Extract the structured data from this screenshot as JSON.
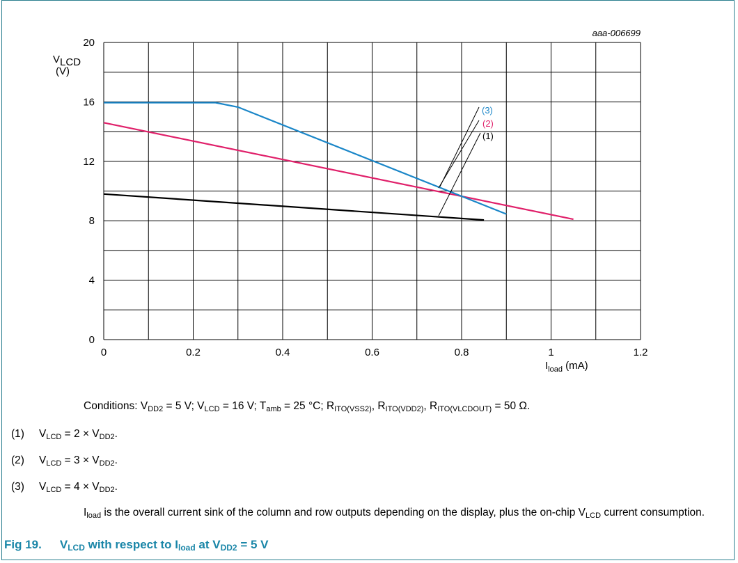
{
  "chart_data": {
    "type": "line",
    "figure_id": "aaa-006699",
    "ylabel_main": "V",
    "ylabel_sub": "LCD",
    "ylabel_unit": "(V)",
    "xlabel_main": "I",
    "xlabel_sub": "load",
    "xlabel_unit": " (mA)",
    "xlim": [
      0,
      1.2
    ],
    "ylim": [
      0,
      20
    ],
    "x_ticks": [
      "0",
      "0.2",
      "0.4",
      "0.6",
      "0.8",
      "1",
      "1.2"
    ],
    "y_ticks": [
      "0",
      "4",
      "8",
      "12",
      "16",
      "20"
    ],
    "grid": true,
    "series": [
      {
        "name": "(1)",
        "color": "#000000",
        "x": [
          0,
          0.85
        ],
        "y": [
          9.8,
          8.05
        ]
      },
      {
        "name": "(2)",
        "color": "#e0206a",
        "x": [
          0,
          1.05
        ],
        "y": [
          14.6,
          8.1
        ]
      },
      {
        "name": "(3)",
        "color": "#1a86c8",
        "x": [
          0,
          0.25,
          0.3,
          0.9
        ],
        "y": [
          15.95,
          15.95,
          15.65,
          8.45
        ]
      }
    ]
  },
  "notes": {
    "conditions": {
      "text1": "Conditions: V",
      "sub1": "DD2",
      "text2": " = 5 V; V",
      "sub2": "LCD",
      "text3": " = 16 V; T",
      "sub3": "amb",
      "text4": " = 25 °C; R",
      "sub4": "ITO(VSS2)",
      "text5": ", R",
      "sub5": "ITO(VDD2)",
      "text6": ", R",
      "sub6": "ITO(VLCDOUT)",
      "text7": " = 50 Ω."
    },
    "items": [
      {
        "num": "(1)",
        "v": "V",
        "vsub": "LCD",
        "mid": " = 2 × V",
        "dsub": "DD2",
        "end": "."
      },
      {
        "num": "(2)",
        "v": "V",
        "vsub": "LCD",
        "mid": " = 3 × V",
        "dsub": "DD2",
        "end": "."
      },
      {
        "num": "(3)",
        "v": "V",
        "vsub": "LCD",
        "mid": " = 4 × V",
        "dsub": "DD2",
        "end": "."
      }
    ],
    "description": {
      "t1": "I",
      "s1": "load",
      "t2": " is the overall current sink of the column and row outputs depending on the display, plus the on-chip V",
      "s2": "LCD",
      "t3": " current consumption."
    }
  },
  "caption": {
    "number": "Fig 19.",
    "t1": "V",
    "s1": "LCD",
    "t2": " with respect to I",
    "s2": "load",
    "t3": " at V",
    "s3": "DD2",
    "t4": " = 5 V"
  }
}
